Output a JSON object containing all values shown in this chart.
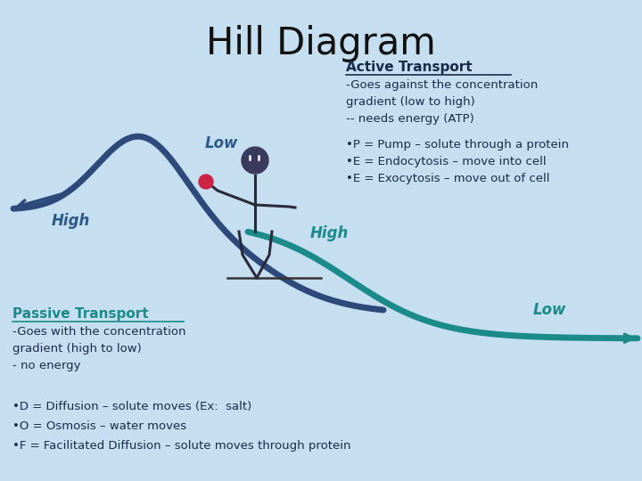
{
  "title": "Hill Diagram",
  "bg_color": "#c5dff0",
  "hill_color": "#2e4a7a",
  "teal_color": "#1a8a8a",
  "label_blue": "#2e5a8a",
  "text_dark": "#1a2a4a",
  "stick_color": "#2a2a3a",
  "dot_color": "#cc2244",
  "active_header": "Active Transport",
  "active_line1": "-Goes against the concentration",
  "active_line2": "gradient (low to high)",
  "active_line3": "-- needs energy (ATP)",
  "pump_line": "•P = Pump – solute through a protein",
  "endo_line": "•E = Endocytosis – move into cell",
  "exo_line": "•E = Exocytosis – move out of cell",
  "passive_header": "Passive Transport",
  "passive_line1": "-Goes with the concentration",
  "passive_line2": "gradient (high to low)",
  "passive_line3": "- no energy",
  "diff_line": "•D = Diffusion – solute moves (Ex:  salt)",
  "osm_line": "•O = Osmosis – water moves",
  "fac_line": "•F = Facilitated Diffusion – solute moves through protein",
  "high_active": "High",
  "low_active": "Low",
  "high_passive": "High",
  "low_passive": "Low"
}
